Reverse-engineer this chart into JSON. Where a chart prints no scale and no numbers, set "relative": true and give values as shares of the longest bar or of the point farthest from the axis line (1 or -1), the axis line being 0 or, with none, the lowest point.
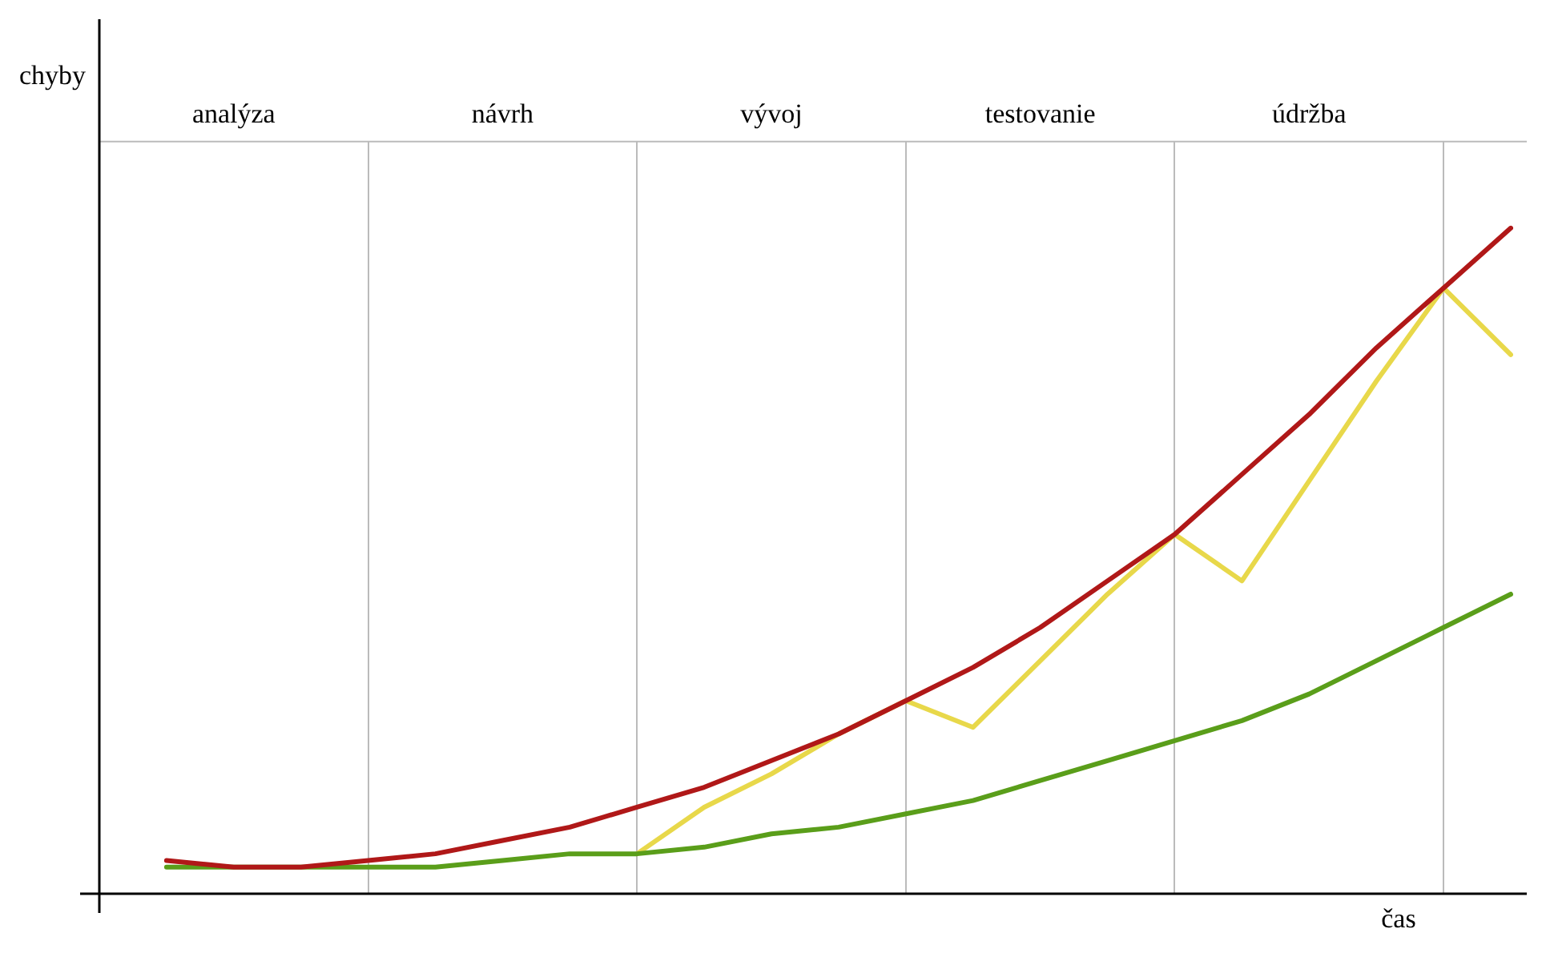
{
  "chart_data": {
    "type": "line",
    "relative": true,
    "xlabel": "čas",
    "ylabel": "chyby",
    "tick_labels": "x",
    "grid": "x",
    "categories": [
      null,
      null,
      "analýza",
      null,
      null,
      null,
      "návrh",
      null,
      null,
      null,
      "vývoj",
      null,
      null,
      null,
      "testovanie",
      null,
      null,
      null,
      "údržba",
      null,
      null,
      null
    ],
    "series": [
      {
        "color": "#b01818",
        "values": [
          null,
          0.05,
          0.04,
          0.04,
          0.05,
          0.06,
          0.08,
          0.1,
          0.13,
          0.16,
          0.2,
          0.24,
          0.29,
          0.34,
          0.4,
          0.47,
          0.54,
          0.63,
          0.72,
          0.82,
          0.91,
          1
        ]
      },
      {
        "color": "#5a9e1a",
        "values": [
          null,
          0.04,
          0.04,
          0.04,
          0.04,
          0.04,
          0.05,
          0.06,
          0.06,
          0.07,
          0.09,
          0.1,
          0.12,
          0.14,
          0.17,
          0.2,
          0.23,
          0.26,
          0.3,
          0.35,
          0.4,
          0.45
        ]
      },
      {
        "color": "#e8d84a",
        "values": [
          null,
          null,
          null,
          null,
          null,
          null,
          null,
          null,
          0.06,
          0.13,
          0.18,
          0.24,
          0.29,
          0.25,
          0.35,
          0.45,
          0.54,
          0.47,
          0.62,
          0.77,
          0.91,
          0.81
        ]
      }
    ]
  }
}
